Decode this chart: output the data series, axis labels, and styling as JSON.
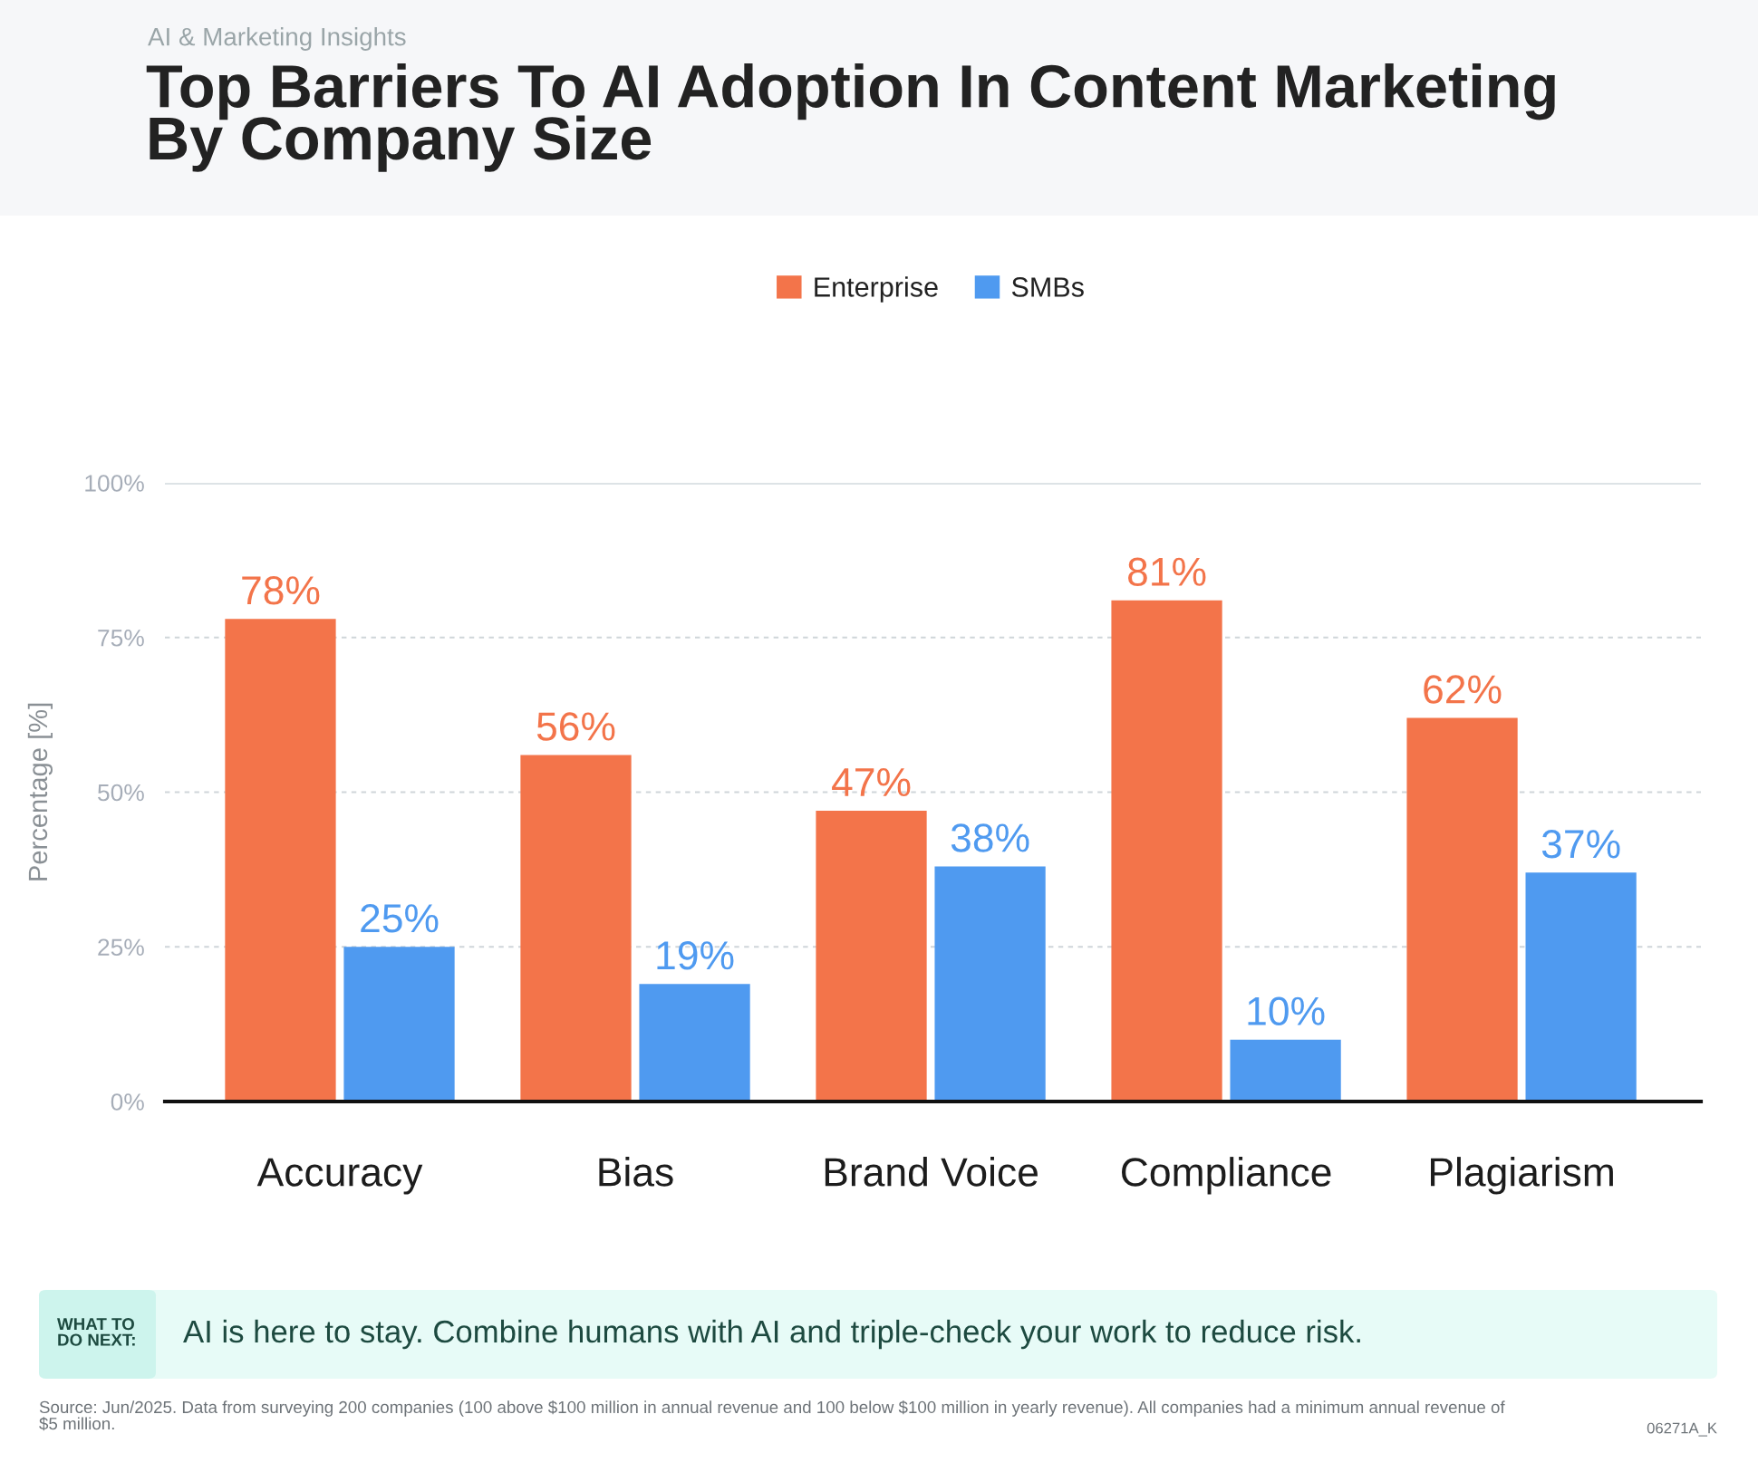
{
  "chart_data": {
    "type": "bar",
    "title": "Top Barriers To AI Adoption In Content Marketing By Company Size",
    "subtitle": "AI & Marketing Insights",
    "ylabel": "Percentage [%]",
    "categories": [
      "Accuracy",
      "Bias",
      "Brand Voice",
      "Compliance",
      "Plagiarism"
    ],
    "series": [
      {
        "name": "Enterprise",
        "color": "#f3744a",
        "values": [
          78,
          56,
          47,
          81,
          62
        ],
        "value_labels": [
          "78%",
          "56%",
          "47%",
          "81%",
          "62%"
        ]
      },
      {
        "name": "SMBs",
        "color": "#4f9af0",
        "values": [
          25,
          19,
          38,
          10,
          37
        ],
        "value_labels": [
          "25%",
          "19%",
          "38%",
          "10%",
          "37%"
        ]
      }
    ],
    "ylim": [
      0,
      100
    ],
    "yticks": [
      {
        "value": 0,
        "label": "0%"
      },
      {
        "value": 25,
        "label": "25%"
      },
      {
        "value": 50,
        "label": "50%"
      },
      {
        "value": 75,
        "label": "75%"
      },
      {
        "value": 100,
        "label": "100%"
      }
    ],
    "grid": "y",
    "legend": "top",
    "annotations": [
      "WHAT TO DO NEXT:",
      "AI is here to stay. Combine humans with AI and triple-check your work to reduce risk.",
      "Source: Jun/2025. Data from surveying 200 companies (100 above $100 million in annual revenue and 100 below $100 million in yearly revenue). All companies had a minimum annual revenue of $5 million.",
      "06271A_K"
    ]
  }
}
